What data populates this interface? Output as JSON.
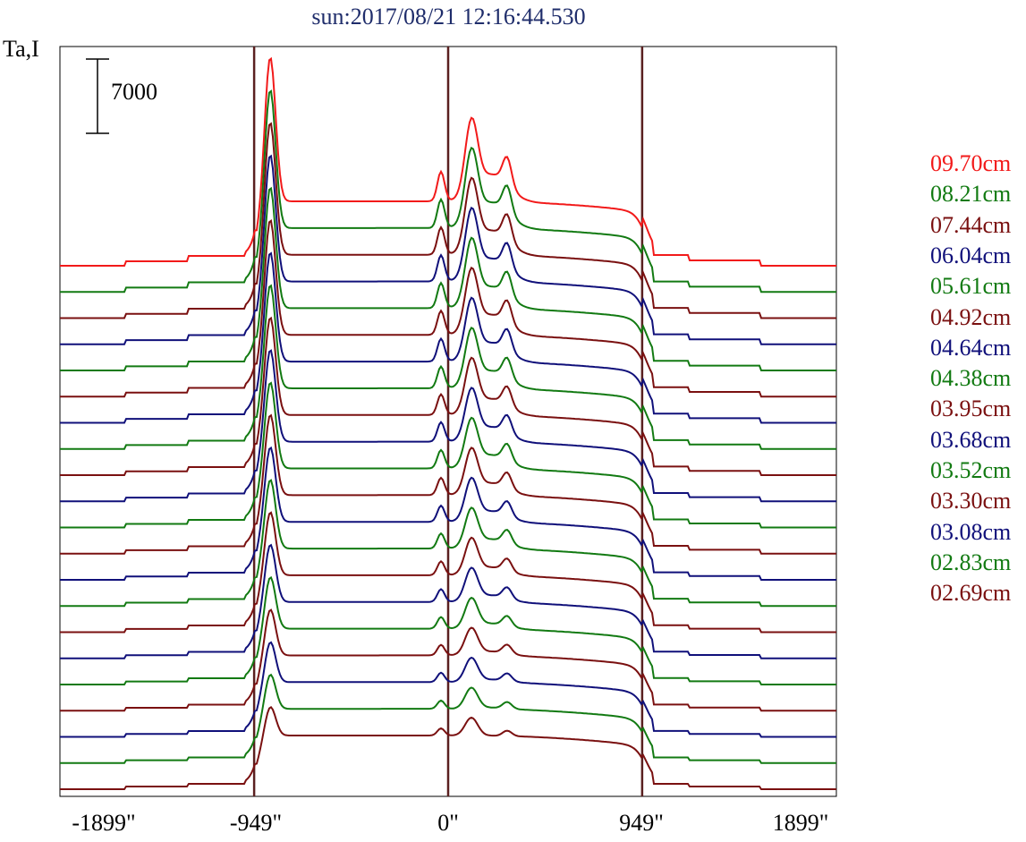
{
  "title": "sun:2017/08/21 12:16:44.530",
  "chart_data": {
    "type": "line",
    "ylabel": "Ta,I",
    "scale_bar": {
      "label": "7000",
      "value": 7000
    },
    "x_ticks": [
      {
        "value": -1899,
        "label": "-1899\""
      },
      {
        "value": -949,
        "label": "-949\""
      },
      {
        "value": 0,
        "label": "0\""
      },
      {
        "value": 949,
        "label": "949\""
      },
      {
        "value": 1899,
        "label": "1899\""
      }
    ],
    "xlim": [
      -1899,
      1899
    ],
    "vertical_markers": [
      -949,
      0,
      949
    ],
    "colors": {
      "red": "#f21a1a",
      "green": "#127a12",
      "darkred": "#7a1010",
      "blue": "#10107a",
      "marker": "#5a2020"
    },
    "series": [
      {
        "name": "09.70cm",
        "color": "red"
      },
      {
        "name": "08.21cm",
        "color": "green"
      },
      {
        "name": "07.44cm",
        "color": "darkred"
      },
      {
        "name": "06.04cm",
        "color": "blue"
      },
      {
        "name": "05.61cm",
        "color": "green"
      },
      {
        "name": "04.92cm",
        "color": "darkred"
      },
      {
        "name": "04.64cm",
        "color": "blue"
      },
      {
        "name": "04.38cm",
        "color": "green"
      },
      {
        "name": "03.95cm",
        "color": "darkred"
      },
      {
        "name": "03.68cm",
        "color": "blue"
      },
      {
        "name": "03.52cm",
        "color": "green"
      },
      {
        "name": "03.30cm",
        "color": "darkred"
      },
      {
        "name": "03.08cm",
        "color": "blue"
      },
      {
        "name": "02.83cm",
        "color": "green"
      },
      {
        "name": "02.69cm",
        "color": "darkred"
      },
      {
        "color": "blue"
      },
      {
        "color": "green"
      },
      {
        "color": "darkred"
      },
      {
        "color": "blue"
      },
      {
        "color": "green"
      },
      {
        "color": "darkred"
      }
    ]
  }
}
